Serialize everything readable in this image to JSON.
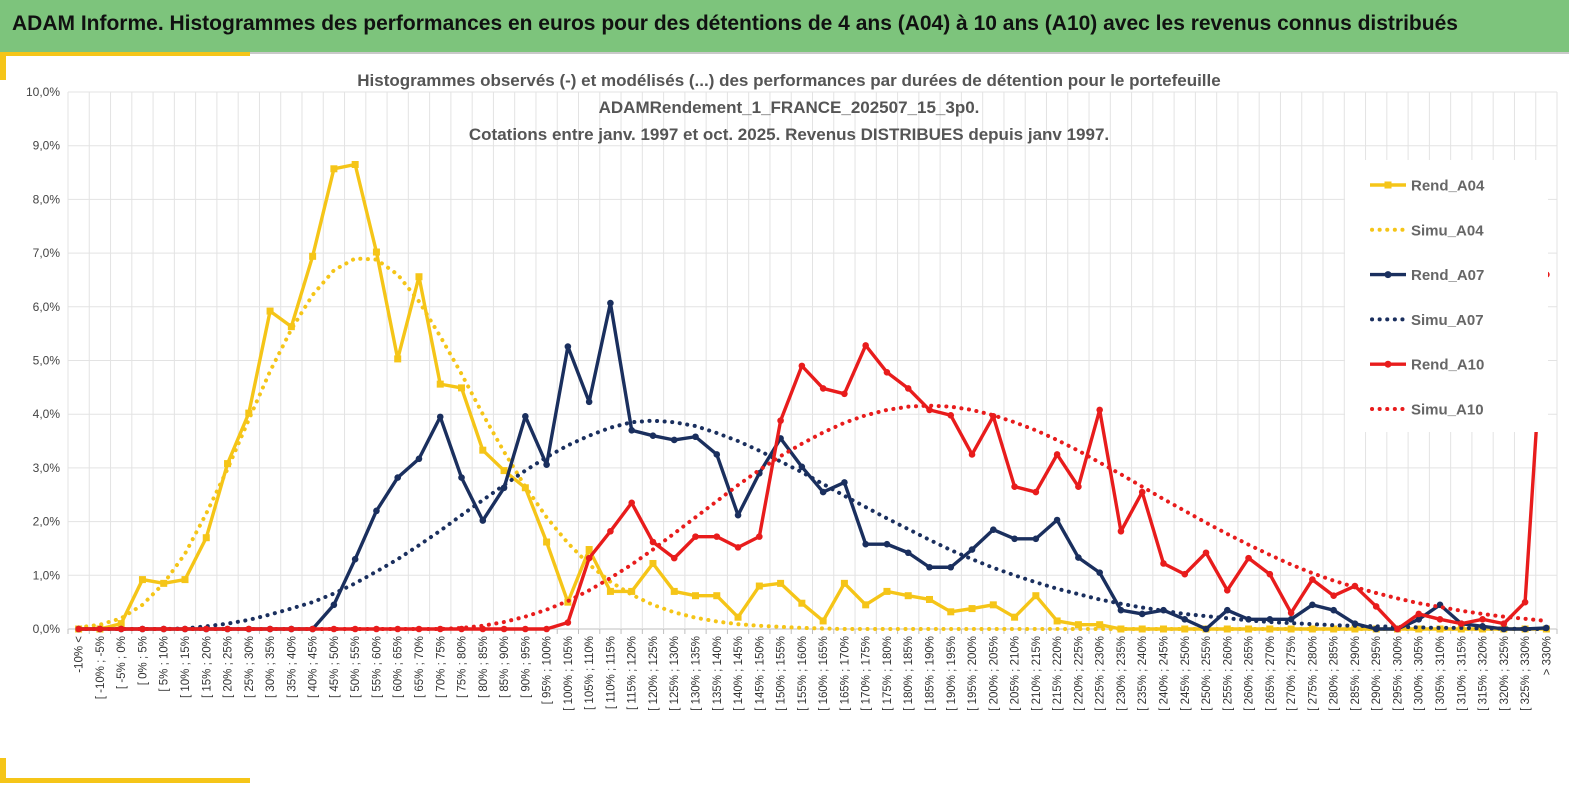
{
  "header": {
    "title": "ADAM Informe. Histogrammes des performances en euros pour des détentions de 4 ans (A04) à 10 ans (A10) avec les revenus connus distribués"
  },
  "chart_data": {
    "type": "line",
    "title": [
      "Histogrammes observés (-) et modélisés (...) des performances par durées de détention pour le portefeuille",
      "ADAMRendement_1_FRANCE_202507_15_3p0.",
      "Cotations entre janv. 1997 et oct. 2025. Revenus DISTRIBUES depuis janv 1997."
    ],
    "xlabel": "",
    "ylabel": "",
    "ylim": [
      0,
      10
    ],
    "yticks": [
      "0,0%",
      "1,0%",
      "2,0%",
      "3,0%",
      "4,0%",
      "5,0%",
      "6,0%",
      "7,0%",
      "8,0%",
      "9,0%",
      "10,0%"
    ],
    "grid": true,
    "legend_position": "right",
    "categories": [
      "-10% <",
      "[ -10% ; -5%",
      "[ -5% ; 0%",
      "[ 0% ; 5%",
      "[ 5% ; 10%",
      "[ 10% ; 15%",
      "[ 15% ; 20%",
      "[ 20% ; 25%",
      "[ 25% ; 30%",
      "[ 30% ; 35%",
      "[ 35% ; 40%",
      "[ 40% ; 45%",
      "[ 45% ; 50%",
      "[ 50% ; 55%",
      "[ 55% ; 60%",
      "[ 60% ; 65%",
      "[ 65% ; 70%",
      "[ 70% ; 75%",
      "[ 75% ; 80%",
      "[ 80% ; 85%",
      "[ 85% ; 90%",
      "[ 90% ; 95%",
      "[ 95% ; 100%",
      "[ 100% ; 105%",
      "[ 105% ; 110%",
      "[ 110% ; 115%",
      "[ 115% ; 120%",
      "[ 120% ; 125%",
      "[ 125% ; 130%",
      "[ 130% ; 135%",
      "[ 135% ; 140%",
      "[ 140% ; 145%",
      "[ 145% ; 150%",
      "[ 150% ; 155%",
      "[ 155% ; 160%",
      "[ 160% ; 165%",
      "[ 165% ; 170%",
      "[ 170% ; 175%",
      "[ 175% ; 180%",
      "[ 180% ; 185%",
      "[ 185% ; 190%",
      "[ 190% ; 195%",
      "[ 195% ; 200%",
      "[ 200% ; 205%",
      "[ 205% ; 210%",
      "[ 210% ; 215%",
      "[ 215% ; 220%",
      "[ 220% ; 225%",
      "[ 225% ; 230%",
      "[ 230% ; 235%",
      "[ 235% ; 240%",
      "[ 240% ; 245%",
      "[ 245% ; 250%",
      "[ 250% ; 255%",
      "[ 255% ; 260%",
      "[ 260% ; 265%",
      "[ 265% ; 270%",
      "[ 270% ; 275%",
      "[ 275% ; 280%",
      "[ 280% ; 285%",
      "[ 285% ; 290%",
      "[ 290% ; 295%",
      "[ 295% ; 300%",
      "[ 300% ; 305%",
      "[ 305% ; 310%",
      "[ 310% ; 315%",
      "[ 315% ; 320%",
      "[ 320% ; 325%",
      "[ 325% ; 330%",
      "> 330%"
    ],
    "series": [
      {
        "name": "Rend_A04",
        "style": "solid-square",
        "color": "#f5c518",
        "values": [
          0,
          0,
          0.1,
          0.92,
          0.85,
          0.92,
          1.7,
          3.08,
          4.02,
          5.92,
          5.63,
          6.94,
          8.57,
          8.65,
          7.02,
          5.03,
          6.56,
          4.56,
          4.49,
          3.33,
          2.95,
          2.63,
          1.62,
          0.5,
          1.48,
          0.7,
          0.7,
          1.22,
          0.7,
          0.62,
          0.62,
          0.22,
          0.8,
          0.85,
          0.48,
          0.15,
          0.85,
          0.45,
          0.7,
          0.62,
          0.55,
          0.32,
          0.38,
          0.45,
          0.22,
          0.62,
          0.15,
          0.08,
          0.08,
          0,
          0,
          0,
          0,
          0,
          0,
          0,
          0,
          0,
          0,
          0,
          0,
          0,
          0,
          0,
          0,
          0,
          0,
          0,
          0,
          0
        ]
      },
      {
        "name": "Simu_A04",
        "style": "dotted",
        "color": "#f5c518",
        "values": [
          0.03,
          0.08,
          0.2,
          0.45,
          0.85,
          1.4,
          2.15,
          2.98,
          3.9,
          4.8,
          5.58,
          6.22,
          6.68,
          6.9,
          6.88,
          6.6,
          6.1,
          5.45,
          4.75,
          4.0,
          3.3,
          2.65,
          2.08,
          1.6,
          1.2,
          0.88,
          0.64,
          0.45,
          0.31,
          0.21,
          0.14,
          0.09,
          0.06,
          0.04,
          0.02,
          0.01,
          0,
          0,
          0,
          0,
          0,
          0,
          0,
          0,
          0,
          0,
          0,
          0,
          0,
          0,
          0,
          0,
          0,
          0,
          0,
          0,
          0,
          0,
          0,
          0,
          0,
          0,
          0,
          0,
          0,
          0,
          0,
          0,
          0,
          0
        ]
      },
      {
        "name": "Rend_A07",
        "style": "solid-circle",
        "color": "#1a2f5e",
        "values": [
          0,
          0,
          0,
          0,
          0,
          0,
          0,
          0,
          0,
          0,
          0,
          0,
          0.45,
          1.3,
          2.2,
          2.82,
          3.17,
          3.95,
          2.82,
          2.02,
          2.63,
          3.96,
          3.06,
          5.26,
          4.23,
          6.07,
          3.7,
          3.6,
          3.52,
          3.58,
          3.25,
          2.12,
          2.9,
          3.55,
          3.02,
          2.55,
          2.73,
          1.58,
          1.58,
          1.42,
          1.15,
          1.15,
          1.48,
          1.85,
          1.68,
          1.68,
          2.03,
          1.33,
          1.05,
          0.35,
          0.28,
          0.35,
          0.18,
          0,
          0.35,
          0.18,
          0.18,
          0.18,
          0.45,
          0.35,
          0.1,
          0,
          0,
          0.18,
          0.45,
          0.1,
          0.05,
          0,
          0,
          0.02
        ]
      },
      {
        "name": "Simu_A07",
        "style": "dotted",
        "color": "#1a2f5e",
        "values": [
          0,
          0,
          0,
          0,
          0,
          0.01,
          0.05,
          0.1,
          0.17,
          0.27,
          0.38,
          0.5,
          0.66,
          0.85,
          1.07,
          1.3,
          1.56,
          1.83,
          2.12,
          2.4,
          2.68,
          2.95,
          3.2,
          3.42,
          3.6,
          3.75,
          3.85,
          3.88,
          3.85,
          3.78,
          3.65,
          3.5,
          3.32,
          3.12,
          2.92,
          2.7,
          2.48,
          2.27,
          2.06,
          1.86,
          1.66,
          1.47,
          1.3,
          1.14,
          1.0,
          0.87,
          0.75,
          0.65,
          0.55,
          0.47,
          0.4,
          0.34,
          0.28,
          0.24,
          0.2,
          0.16,
          0.13,
          0.11,
          0.09,
          0.07,
          0.06,
          0.05,
          0.04,
          0.03,
          0.02,
          0.02,
          0.01,
          0.01,
          0,
          0
        ]
      },
      {
        "name": "Rend_A10",
        "style": "solid-circle",
        "color": "#e81c1c",
        "values": [
          0,
          0,
          0,
          0,
          0,
          0,
          0,
          0,
          0,
          0,
          0,
          0,
          0,
          0,
          0,
          0,
          0,
          0,
          0,
          0,
          0,
          0,
          0,
          0.12,
          1.32,
          1.82,
          2.35,
          1.62,
          1.32,
          1.72,
          1.72,
          1.52,
          1.72,
          3.88,
          4.9,
          4.48,
          4.38,
          5.28,
          4.78,
          4.48,
          4.08,
          3.98,
          3.25,
          3.96,
          2.65,
          2.55,
          3.25,
          2.65,
          4.08,
          1.82,
          2.55,
          1.22,
          1.02,
          1.42,
          0.72,
          1.32,
          1.02,
          0.3,
          0.92,
          0.62,
          0.8,
          0.42,
          0,
          0.28,
          0.18,
          0.1,
          0.18,
          0.1,
          0.5,
          6.6
        ]
      },
      {
        "name": "Simu_A10",
        "style": "dotted",
        "color": "#e81c1c",
        "values": [
          0,
          0,
          0,
          0,
          0,
          0,
          0,
          0,
          0,
          0,
          0,
          0,
          0,
          0,
          0,
          0,
          0,
          0,
          0.02,
          0.06,
          0.13,
          0.23,
          0.36,
          0.52,
          0.72,
          0.95,
          1.2,
          1.48,
          1.78,
          2.08,
          2.38,
          2.68,
          2.96,
          3.22,
          3.45,
          3.66,
          3.84,
          3.98,
          4.08,
          4.14,
          4.16,
          4.14,
          4.08,
          3.98,
          3.85,
          3.7,
          3.52,
          3.32,
          3.1,
          2.88,
          2.65,
          2.42,
          2.2,
          1.98,
          1.77,
          1.57,
          1.38,
          1.2,
          1.04,
          0.9,
          0.78,
          0.67,
          0.57,
          0.48,
          0.41,
          0.34,
          0.28,
          0.23,
          0.19,
          0.15
        ]
      }
    ]
  }
}
